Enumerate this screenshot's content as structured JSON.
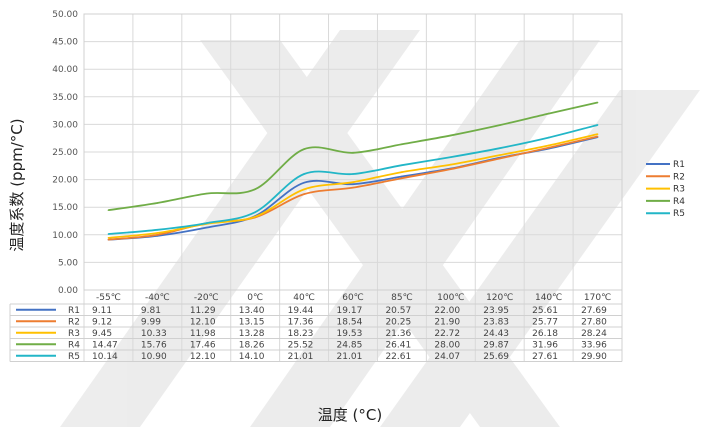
{
  "chart_data": {
    "type": "line",
    "xlabel": "温度 (°C)",
    "ylabel": "温度系数 (ppm/°C)",
    "ylim": [
      0,
      50
    ],
    "yticks": [
      "0.00",
      "5.00",
      "10.00",
      "15.00",
      "20.00",
      "25.00",
      "30.00",
      "35.00",
      "40.00",
      "45.00",
      "50.00"
    ],
    "categories": [
      "-55℃",
      "-40℃",
      "-20℃",
      "0℃",
      "40℃",
      "60℃",
      "85℃",
      "100℃",
      "120℃",
      "140℃",
      "170℃"
    ],
    "grid": true,
    "legend_position": "right",
    "data_table": true,
    "series": [
      {
        "name": "R1",
        "color": "#4472c4",
        "values": [
          9.11,
          9.81,
          11.29,
          13.4,
          19.44,
          19.17,
          20.57,
          22.0,
          23.95,
          25.61,
          27.69
        ],
        "labels": [
          "9.11",
          "9.81",
          "11.29",
          "13.40",
          "19.44",
          "19.17",
          "20.57",
          "22.00",
          "23.95",
          "25.61",
          "27.69"
        ]
      },
      {
        "name": "R2",
        "color": "#ed7d31",
        "values": [
          9.12,
          9.99,
          12.1,
          13.15,
          17.36,
          18.54,
          20.25,
          21.9,
          23.83,
          25.77,
          27.8
        ],
        "labels": [
          "9.12",
          "9.99",
          "12.10",
          "13.15",
          "17.36",
          "18.54",
          "20.25",
          "21.90",
          "23.83",
          "25.77",
          "27.80"
        ]
      },
      {
        "name": "R3",
        "color": "#ffc000",
        "values": [
          9.45,
          10.33,
          11.98,
          13.28,
          18.23,
          19.53,
          21.36,
          22.72,
          24.43,
          26.18,
          28.24
        ],
        "labels": [
          "9.45",
          "10.33",
          "11.98",
          "13.28",
          "18.23",
          "19.53",
          "21.36",
          "22.72",
          "24.43",
          "26.18",
          "28.24"
        ]
      },
      {
        "name": "R4",
        "color": "#70ad47",
        "values": [
          14.47,
          15.76,
          17.46,
          18.26,
          25.52,
          24.85,
          26.41,
          28.0,
          29.87,
          31.96,
          33.96
        ],
        "labels": [
          "14.47",
          "15.76",
          "17.46",
          "18.26",
          "25.52",
          "24.85",
          "26.41",
          "28.00",
          "29.87",
          "31.96",
          "33.96"
        ]
      },
      {
        "name": "R5",
        "color": "#22b6c7",
        "values": [
          10.14,
          10.9,
          12.1,
          14.1,
          21.01,
          21.01,
          22.61,
          24.07,
          25.69,
          27.61,
          29.9
        ],
        "labels": [
          "10.14",
          "10.90",
          "12.10",
          "14.10",
          "21.01",
          "21.01",
          "22.61",
          "24.07",
          "25.69",
          "27.61",
          "29.90"
        ]
      }
    ]
  }
}
